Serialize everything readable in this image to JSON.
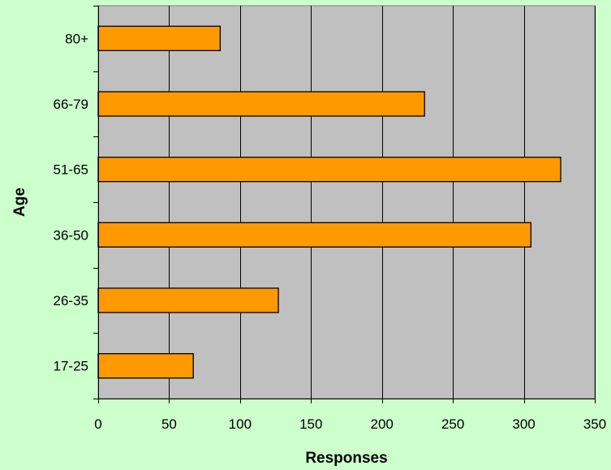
{
  "chart_data": {
    "type": "bar",
    "orientation": "horizontal",
    "title": "",
    "xlabel": "Responses",
    "ylabel": "Age",
    "categories": [
      "17-25",
      "26-35",
      "36-50",
      "51-65",
      "66-79",
      "80+"
    ],
    "values": [
      67,
      127,
      305,
      326,
      230,
      86
    ],
    "xlim": [
      0,
      350
    ],
    "xticks": [
      0,
      50,
      100,
      150,
      200,
      250,
      300,
      350
    ],
    "grid": "vertical",
    "legend": "none",
    "colors": {
      "bar_fill": "#ff9900",
      "bar_stroke": "#000000",
      "plot_background": "#c0c0c0",
      "page_background": "#ccffcc",
      "gridline": "#000000"
    }
  }
}
